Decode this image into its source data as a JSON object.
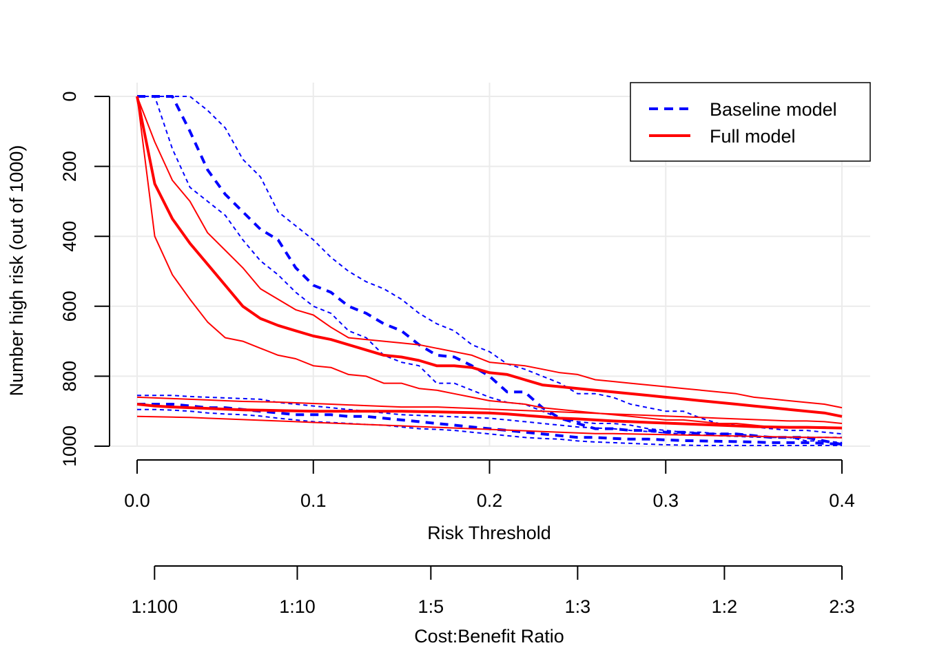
{
  "chart_data": {
    "type": "line",
    "xlabel": "Risk Threshold",
    "ylabel": "Number high risk (out of 1000)",
    "x2label": "Cost:Benefit Ratio",
    "xlim": [
      0,
      0.4
    ],
    "ylim": [
      1000,
      0
    ],
    "x_ticks": [
      0.0,
      0.1,
      0.2,
      0.3,
      0.4
    ],
    "x_tick_labels": [
      "0.0",
      "0.1",
      "0.2",
      "0.3",
      "0.4"
    ],
    "y_ticks": [
      0,
      200,
      400,
      600,
      800,
      1000
    ],
    "y_tick_labels": [
      "0",
      "200",
      "400",
      "600",
      "800",
      "1000"
    ],
    "x2_ticks": [
      0.0099,
      0.0909,
      0.1667,
      0.25,
      0.3333,
      0.4
    ],
    "x2_tick_labels": [
      "1:100",
      "1:10",
      "1:5",
      "1:3",
      "1:2",
      "2:3"
    ],
    "grid": true,
    "legend_position": "top-right",
    "colors": {
      "baseline": "#0000FF",
      "full": "#FF0000",
      "grid": "#EBEBEB"
    },
    "legend": [
      {
        "label": "Baseline model",
        "color": "#0000FF",
        "style": "dashed"
      },
      {
        "label": "Full model",
        "color": "#FF0000",
        "style": "solid"
      }
    ],
    "x": [
      0,
      0.01,
      0.02,
      0.03,
      0.04,
      0.05,
      0.06,
      0.07,
      0.08,
      0.09,
      0.1,
      0.11,
      0.12,
      0.13,
      0.14,
      0.15,
      0.16,
      0.17,
      0.18,
      0.19,
      0.2,
      0.21,
      0.22,
      0.23,
      0.24,
      0.25,
      0.26,
      0.27,
      0.28,
      0.29,
      0.3,
      0.31,
      0.32,
      0.33,
      0.34,
      0.35,
      0.36,
      0.37,
      0.38,
      0.39,
      0.4
    ],
    "series": [
      {
        "name": "Baseline model",
        "role": "high-risk",
        "weight": "main",
        "color": "#0000FF",
        "style": "dashed",
        "values": [
          0,
          0,
          0,
          100,
          210,
          280,
          330,
          380,
          410,
          490,
          540,
          560,
          600,
          620,
          650,
          670,
          710,
          740,
          745,
          770,
          800,
          845,
          845,
          890,
          920,
          935,
          950,
          950,
          955,
          955,
          960,
          960,
          965,
          965,
          965,
          970,
          975,
          975,
          975,
          985,
          995
        ]
      },
      {
        "name": "Baseline model",
        "role": "high-risk",
        "weight": "ci-lower",
        "color": "#0000FF",
        "style": "dashed",
        "values": [
          0,
          0,
          0,
          0,
          40,
          90,
          180,
          230,
          330,
          370,
          410,
          460,
          500,
          530,
          550,
          580,
          620,
          650,
          670,
          710,
          730,
          765,
          780,
          800,
          820,
          850,
          850,
          860,
          880,
          890,
          900,
          900,
          920,
          935,
          940,
          945,
          950,
          955,
          955,
          960,
          965
        ]
      },
      {
        "name": "Baseline model",
        "role": "high-risk",
        "weight": "ci-upper",
        "color": "#0000FF",
        "style": "dashed",
        "values": [
          0,
          0,
          150,
          260,
          300,
          340,
          410,
          470,
          510,
          560,
          600,
          620,
          670,
          690,
          740,
          760,
          770,
          820,
          820,
          840,
          860,
          875,
          880,
          900,
          920,
          930,
          935,
          935,
          940,
          950,
          955,
          960,
          960,
          965,
          965,
          970,
          975,
          975,
          985,
          985,
          990
        ]
      },
      {
        "name": "Full model",
        "role": "high-risk",
        "weight": "main",
        "color": "#FF0000",
        "style": "solid",
        "values": [
          0,
          250,
          350,
          420,
          480,
          540,
          600,
          635,
          655,
          670,
          685,
          695,
          710,
          725,
          740,
          745,
          755,
          770,
          770,
          775,
          790,
          795,
          810,
          825,
          830,
          835,
          840,
          845,
          850,
          855,
          860,
          865,
          870,
          875,
          880,
          885,
          890,
          895,
          900,
          905,
          915
        ]
      },
      {
        "name": "Full model",
        "role": "high-risk",
        "weight": "ci-upper",
        "color": "#FF0000",
        "style": "solid",
        "values": [
          0,
          130,
          240,
          300,
          390,
          440,
          490,
          550,
          580,
          610,
          625,
          660,
          690,
          695,
          700,
          705,
          710,
          720,
          730,
          740,
          760,
          765,
          770,
          780,
          790,
          795,
          810,
          815,
          820,
          825,
          830,
          835,
          840,
          845,
          850,
          860,
          865,
          870,
          875,
          880,
          890
        ]
      },
      {
        "name": "Full model",
        "role": "high-risk",
        "weight": "ci-lower",
        "color": "#FF0000",
        "style": "solid",
        "values": [
          0,
          400,
          510,
          580,
          645,
          690,
          700,
          720,
          740,
          750,
          770,
          775,
          795,
          800,
          820,
          820,
          835,
          840,
          850,
          860,
          870,
          875,
          880,
          890,
          895,
          900,
          905,
          910,
          915,
          920,
          925,
          925,
          930,
          935,
          935,
          940,
          945,
          945,
          945,
          945,
          950
        ]
      },
      {
        "name": "Baseline model",
        "role": "low-risk",
        "weight": "main",
        "color": "#0000FF",
        "style": "dashed",
        "values": [
          880,
          880,
          880,
          885,
          890,
          890,
          895,
          900,
          905,
          910,
          910,
          910,
          915,
          915,
          920,
          925,
          930,
          935,
          940,
          945,
          950,
          955,
          960,
          965,
          970,
          975,
          975,
          978,
          980,
          980,
          982,
          984,
          985,
          986,
          987,
          988,
          990,
          990,
          990,
          992,
          995
        ]
      },
      {
        "name": "Baseline model",
        "role": "low-risk",
        "weight": "ci-lower",
        "color": "#0000FF",
        "style": "dashed",
        "values": [
          855,
          855,
          855,
          858,
          860,
          862,
          864,
          866,
          875,
          880,
          885,
          890,
          895,
          900,
          905,
          910,
          912,
          914,
          916,
          918,
          920,
          925,
          930,
          935,
          940,
          945,
          948,
          950,
          955,
          958,
          962,
          965,
          968,
          970,
          972,
          974,
          975,
          975,
          975,
          975,
          975
        ]
      },
      {
        "name": "Baseline model",
        "role": "low-risk",
        "weight": "ci-upper",
        "color": "#0000FF",
        "style": "dashed",
        "values": [
          895,
          895,
          897,
          900,
          905,
          908,
          910,
          914,
          920,
          925,
          930,
          932,
          935,
          938,
          940,
          945,
          950,
          952,
          955,
          960,
          965,
          970,
          975,
          978,
          980,
          985,
          988,
          990,
          992,
          994,
          996,
          997,
          998,
          998,
          998,
          998,
          998,
          998,
          998,
          998,
          998
        ]
      },
      {
        "name": "Full model",
        "role": "low-risk",
        "weight": "main",
        "color": "#FF0000",
        "style": "solid",
        "values": [
          880,
          885,
          888,
          890,
          892,
          894,
          896,
          897,
          898,
          899,
          900,
          900,
          900,
          900,
          900,
          900,
          901,
          902,
          903,
          904,
          905,
          908,
          912,
          916,
          920,
          922,
          925,
          928,
          930,
          932,
          934,
          936,
          938,
          940,
          942,
          944,
          945,
          946,
          946,
          947,
          948
        ]
      },
      {
        "name": "Full model",
        "role": "low-risk",
        "weight": "ci-upper",
        "color": "#FF0000",
        "style": "solid",
        "values": [
          860,
          862,
          864,
          866,
          868,
          870,
          872,
          873,
          874,
          876,
          878,
          880,
          882,
          884,
          886,
          888,
          888,
          888,
          890,
          892,
          894,
          896,
          898,
          900,
          902,
          904,
          906,
          908,
          910,
          912,
          914,
          916,
          918,
          920,
          922,
          924,
          926,
          928,
          928,
          930,
          935
        ]
      },
      {
        "name": "Full model",
        "role": "low-risk",
        "weight": "ci-lower",
        "color": "#FF0000",
        "style": "solid",
        "values": [
          915,
          916,
          917,
          918,
          920,
          922,
          924,
          926,
          928,
          930,
          932,
          934,
          936,
          938,
          940,
          942,
          944,
          946,
          948,
          950,
          952,
          954,
          956,
          958,
          960,
          962,
          964,
          964,
          965,
          966,
          967,
          968,
          969,
          970,
          971,
          972,
          973,
          974,
          975,
          975,
          976
        ]
      }
    ]
  }
}
